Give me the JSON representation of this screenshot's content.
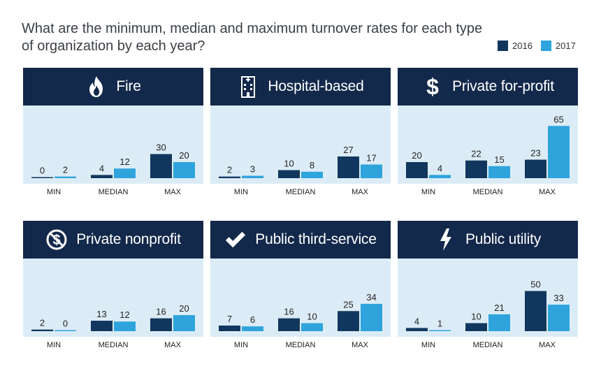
{
  "title": "What are the minimum, median and maximum turnover rates for each type of organization by each year?",
  "colors": {
    "y2016": "#12375e",
    "y2017": "#2fa4dc",
    "header": "#13294b",
    "panel_bg": "#dcecf6"
  },
  "legend": [
    {
      "label": "2016",
      "color": "#12375e"
    },
    {
      "label": "2017",
      "color": "#2fa4dc"
    }
  ],
  "chart_data": [
    {
      "type": "bar",
      "title": "Fire",
      "icon": "fire-icon",
      "categories": [
        "MIN",
        "MEDIAN",
        "MAX"
      ],
      "series": [
        {
          "name": "2016",
          "values": [
            0,
            4,
            30
          ]
        },
        {
          "name": "2017",
          "values": [
            2,
            12,
            20
          ]
        }
      ]
    },
    {
      "type": "bar",
      "title": "Hospital-based",
      "icon": "hospital-building-icon",
      "categories": [
        "MIN",
        "MEDIAN",
        "MAX"
      ],
      "series": [
        {
          "name": "2016",
          "values": [
            2,
            10,
            27
          ]
        },
        {
          "name": "2017",
          "values": [
            3,
            8,
            17
          ]
        }
      ]
    },
    {
      "type": "bar",
      "title": "Private for-profit",
      "icon": "dollar-sign-icon",
      "categories": [
        "MIN",
        "MEDIAN",
        "MAX"
      ],
      "series": [
        {
          "name": "2016",
          "values": [
            20,
            22,
            23
          ]
        },
        {
          "name": "2017",
          "values": [
            4,
            15,
            65
          ]
        }
      ]
    },
    {
      "type": "bar",
      "title": "Private nonprofit",
      "icon": "no-dollar-icon",
      "categories": [
        "MIN",
        "MEDIAN",
        "MAX"
      ],
      "series": [
        {
          "name": "2016",
          "values": [
            2,
            13,
            16
          ]
        },
        {
          "name": "2017",
          "values": [
            0,
            12,
            20
          ]
        }
      ]
    },
    {
      "type": "bar",
      "title": "Public third-service",
      "icon": "checkmark-icon",
      "categories": [
        "MIN",
        "MEDIAN",
        "MAX"
      ],
      "series": [
        {
          "name": "2016",
          "values": [
            7,
            16,
            25
          ]
        },
        {
          "name": "2017",
          "values": [
            6,
            10,
            34
          ]
        }
      ]
    },
    {
      "type": "bar",
      "title": "Public utility",
      "icon": "lightning-bolt-icon",
      "categories": [
        "MIN",
        "MEDIAN",
        "MAX"
      ],
      "series": [
        {
          "name": "2016",
          "values": [
            4,
            10,
            50
          ]
        },
        {
          "name": "2017",
          "values": [
            1,
            21,
            33
          ]
        }
      ]
    }
  ]
}
